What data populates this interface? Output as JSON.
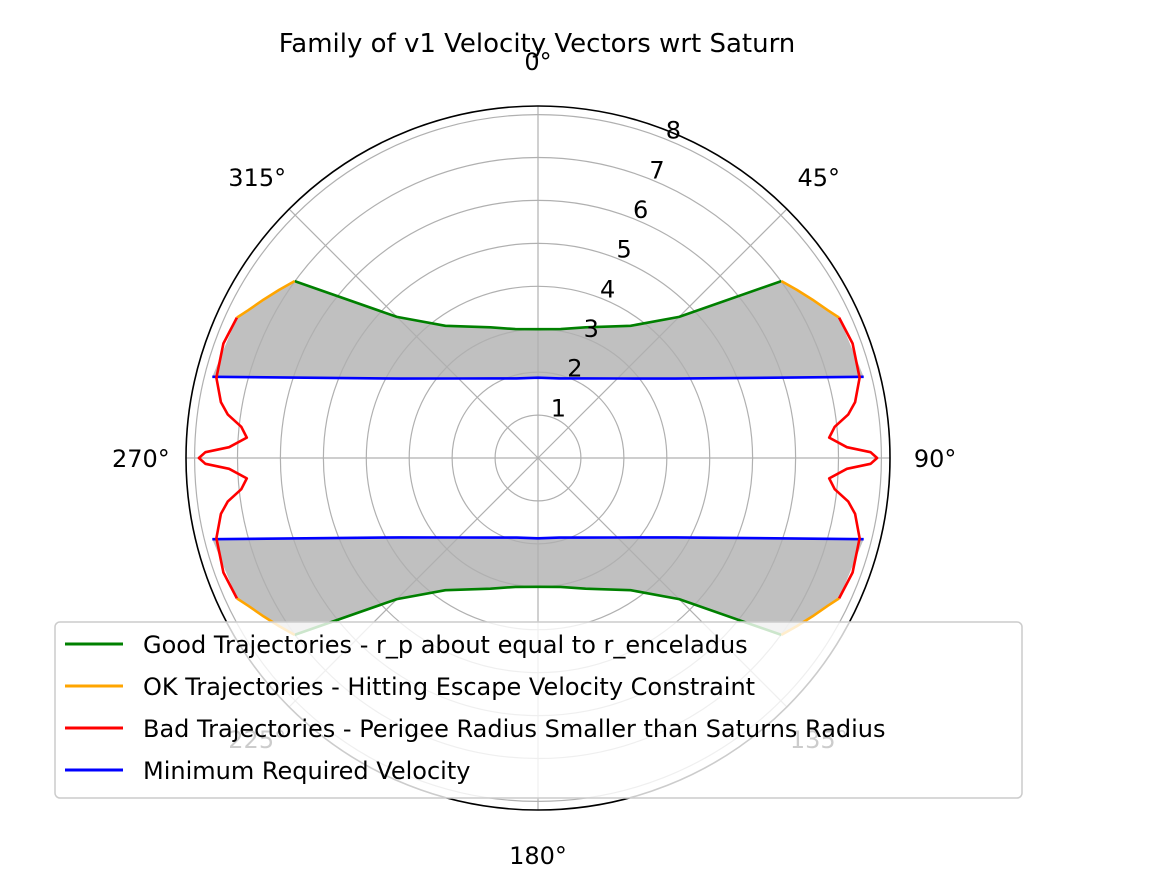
{
  "chart_data": {
    "type": "polar",
    "title": "Family of v1 Velocity Vectors wrt Saturn",
    "theta_zero": "N",
    "theta_direction": "clockwise",
    "theta_ticks": [
      {
        "deg": 0,
        "label": "0°"
      },
      {
        "deg": 45,
        "label": "45°"
      },
      {
        "deg": 90,
        "label": "90°"
      },
      {
        "deg": 135,
        "label": "135°"
      },
      {
        "deg": 180,
        "label": "180°"
      },
      {
        "deg": 225,
        "label": "225°"
      },
      {
        "deg": 270,
        "label": "270°"
      },
      {
        "deg": 315,
        "label": "315°"
      }
    ],
    "r_ticks": [
      {
        "value": 1,
        "label": "1"
      },
      {
        "value": 2,
        "label": "2"
      },
      {
        "value": 3,
        "label": "3"
      },
      {
        "value": 4,
        "label": "4"
      },
      {
        "value": 5,
        "label": "5"
      },
      {
        "value": 6,
        "label": "6"
      },
      {
        "value": 7,
        "label": "7"
      },
      {
        "value": 8,
        "label": "8"
      }
    ],
    "rlim": [
      0,
      8.2
    ],
    "grid": true,
    "legend_position": "bottom-left",
    "series": [
      {
        "name": "Good Trajectories - r_p about equal to r_enceladus",
        "color": "#008000",
        "segments": [
          {
            "points": [
              [
                54,
                7.01
              ],
              [
                45,
                4.65
              ],
              [
                35,
                3.76
              ],
              [
                20,
                3.24
              ],
              [
                10,
                3.05
              ],
              [
                0,
                3.0
              ],
              [
                -10,
                3.05
              ],
              [
                -20,
                3.24
              ],
              [
                -35,
                3.76
              ],
              [
                -45,
                4.65
              ],
              [
                -54,
                7.01
              ]
            ]
          },
          {
            "points": [
              [
                126,
                7.01
              ],
              [
                135,
                4.65
              ],
              [
                145,
                3.76
              ],
              [
                160,
                3.24
              ],
              [
                170,
                3.05
              ],
              [
                180,
                3.0
              ],
              [
                190,
                3.05
              ],
              [
                200,
                3.24
              ],
              [
                215,
                3.76
              ],
              [
                225,
                4.65
              ],
              [
                234,
                7.01
              ]
            ]
          }
        ]
      },
      {
        "name": "OK Trajectories - Hitting Escape Velocity Constraint",
        "color": "#FFA500",
        "segments": [
          {
            "points": [
              [
                54,
                7.01
              ],
              [
                57,
                7.19
              ],
              [
                60,
                7.38
              ],
              [
                63,
                7.58
              ],
              [
                65,
                7.74
              ]
            ]
          },
          {
            "points": [
              [
                -54,
                7.01
              ],
              [
                -57,
                7.19
              ],
              [
                -60,
                7.38
              ],
              [
                -63,
                7.58
              ],
              [
                -65,
                7.74
              ]
            ]
          },
          {
            "points": [
              [
                126,
                7.01
              ],
              [
                123,
                7.19
              ],
              [
                120,
                7.38
              ],
              [
                117,
                7.58
              ],
              [
                115,
                7.74
              ]
            ]
          },
          {
            "points": [
              [
                234,
                7.01
              ],
              [
                237,
                7.19
              ],
              [
                240,
                7.38
              ],
              [
                243,
                7.58
              ],
              [
                245,
                7.74
              ]
            ]
          }
        ]
      },
      {
        "name": "Bad Trajectories - Perigee Radius Smaller than Saturns Radius",
        "color": "#FF0000",
        "segments": [
          {
            "points": [
              [
                65,
                7.74
              ],
              [
                70,
                7.8
              ],
              [
                76,
                7.72
              ],
              [
                80,
                7.5
              ],
              [
                82,
                7.3
              ],
              [
                84,
                6.95
              ],
              [
                86,
                6.8
              ],
              [
                88,
                7.2
              ],
              [
                89,
                7.75
              ],
              [
                90,
                7.9
              ],
              [
                91,
                7.75
              ],
              [
                92,
                7.2
              ],
              [
                94,
                6.8
              ],
              [
                96,
                6.95
              ],
              [
                98,
                7.3
              ],
              [
                100,
                7.5
              ],
              [
                104,
                7.72
              ],
              [
                110,
                7.8
              ],
              [
                115,
                7.74
              ]
            ]
          },
          {
            "points": [
              [
                -65,
                7.74
              ],
              [
                -70,
                7.8
              ],
              [
                -76,
                7.72
              ],
              [
                -80,
                7.5
              ],
              [
                -82,
                7.3
              ],
              [
                -84,
                6.95
              ],
              [
                -86,
                6.8
              ],
              [
                -88,
                7.2
              ],
              [
                -89,
                7.75
              ],
              [
                -90,
                7.9
              ],
              [
                -91,
                7.75
              ],
              [
                -92,
                7.2
              ],
              [
                -94,
                6.8
              ],
              [
                -96,
                6.95
              ],
              [
                -98,
                7.3
              ],
              [
                -100,
                7.5
              ],
              [
                -104,
                7.72
              ],
              [
                -110,
                7.8
              ],
              [
                -115,
                7.74
              ]
            ]
          }
        ]
      },
      {
        "name": "Minimum Required Velocity",
        "color": "#0000FF",
        "segments": [
          {
            "points": [
              [
                76,
                7.82
              ],
              [
                60,
                3.7
              ],
              [
                45,
                2.62
              ],
              [
                30,
                2.14
              ],
              [
                15,
                1.92
              ],
              [
                0,
                1.87
              ],
              [
                -15,
                1.92
              ],
              [
                -30,
                2.14
              ],
              [
                -45,
                2.62
              ],
              [
                -60,
                3.7
              ],
              [
                -76,
                7.82
              ]
            ]
          },
          {
            "points": [
              [
                104,
                7.82
              ],
              [
                120,
                3.7
              ],
              [
                135,
                2.62
              ],
              [
                150,
                2.14
              ],
              [
                165,
                1.92
              ],
              [
                180,
                1.87
              ],
              [
                195,
                1.92
              ],
              [
                210,
                2.14
              ],
              [
                225,
                2.62
              ],
              [
                240,
                3.7
              ],
              [
                256,
                7.82
              ]
            ]
          }
        ]
      }
    ],
    "fill_color": "#C0C0C0"
  }
}
